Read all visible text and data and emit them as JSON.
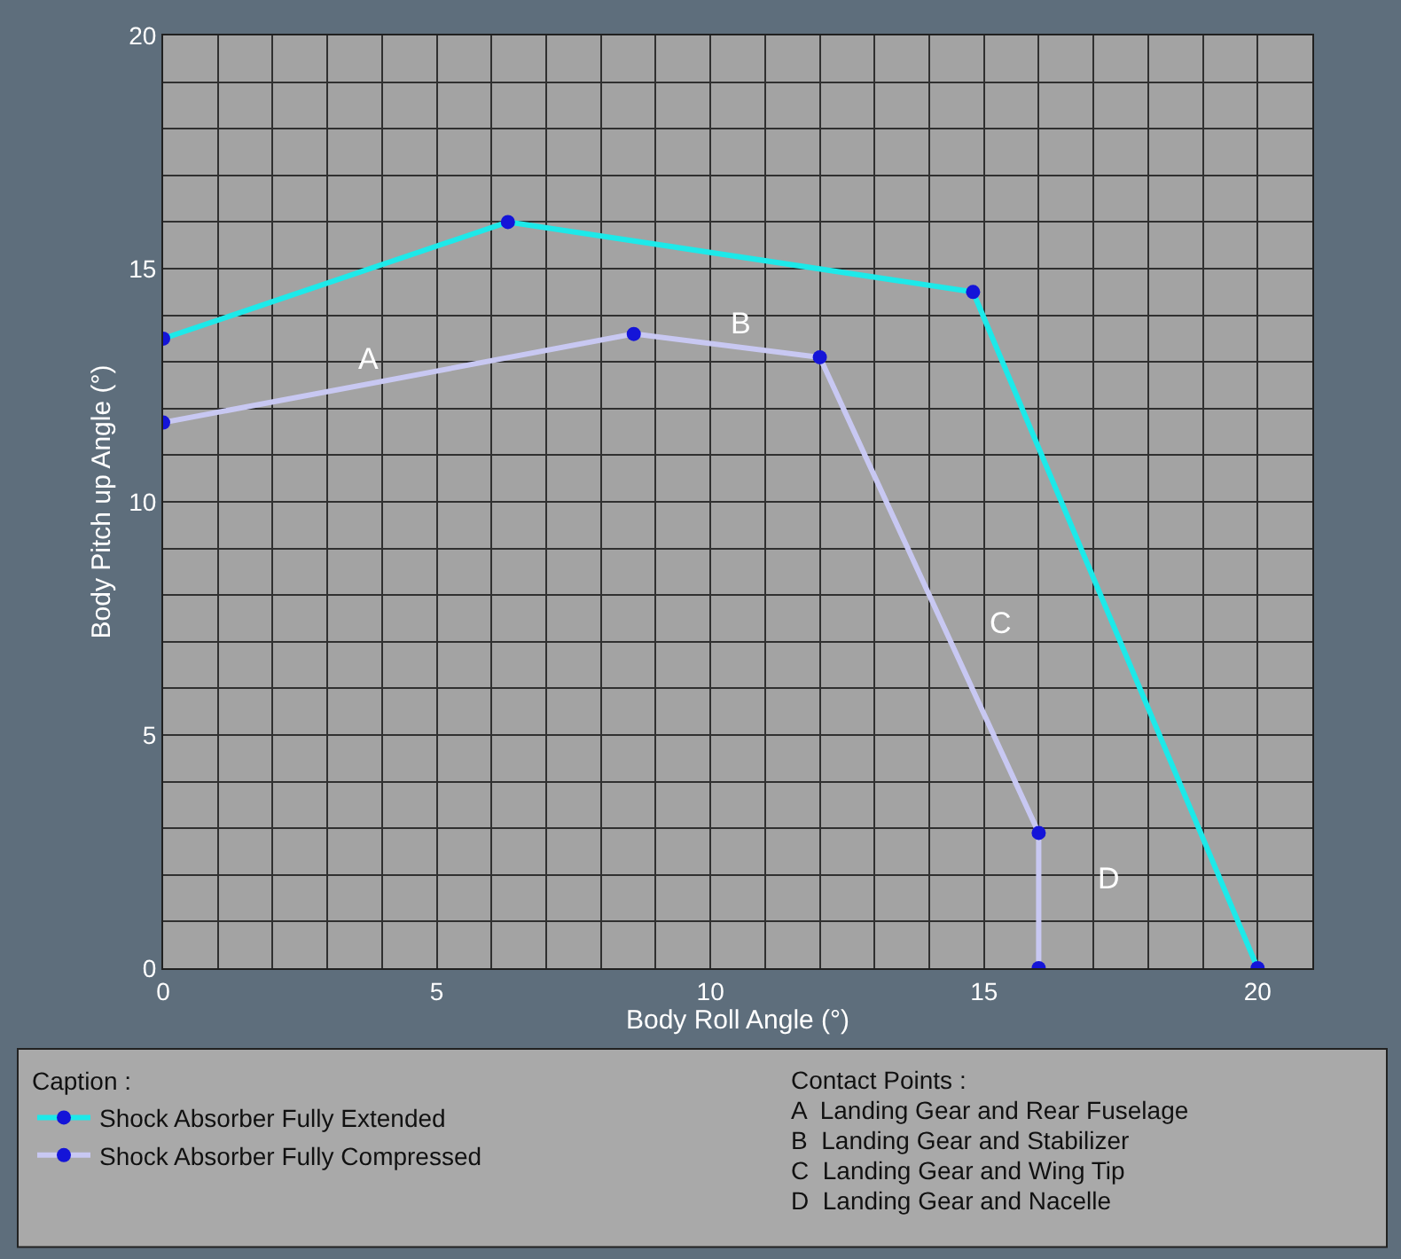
{
  "chart_data": {
    "type": "line",
    "xlabel": "Body Roll Angle (°)",
    "ylabel": "Body Pitch up Angle (°)",
    "legend_title": "Caption :",
    "legend": "bottom left",
    "series": [
      {
        "name": "Shock Absorber Fully Extended",
        "color": "#1de9e9",
        "x": [
          0,
          6.3,
          14.8,
          20
        ],
        "values": [
          13.5,
          16,
          14.5,
          0
        ]
      },
      {
        "name": "Shock Absorber Fully Compressed",
        "color": "#c8c8f2",
        "x": [
          0,
          8.6,
          12,
          16,
          16
        ],
        "values": [
          11.7,
          13.6,
          13.1,
          2.9,
          0
        ]
      }
    ],
    "marker": "circle",
    "xlim": [
      0,
      21
    ],
    "ylim": [
      0,
      20
    ],
    "xticks": [
      0,
      {
        "value": 1,
        "label": null
      },
      {
        "value": 2,
        "label": null
      },
      {
        "value": 3,
        "label": null
      },
      {
        "value": 4,
        "label": null
      },
      5,
      {
        "value": 6,
        "label": null
      },
      {
        "value": 7,
        "label": null
      },
      {
        "value": 8,
        "label": null
      },
      {
        "value": 9,
        "label": null
      },
      10,
      {
        "value": 11,
        "label": null
      },
      {
        "value": 12,
        "label": null
      },
      {
        "value": 13,
        "label": null
      },
      {
        "value": 14,
        "label": null
      },
      15,
      {
        "value": 16,
        "label": null
      },
      {
        "value": 17,
        "label": null
      },
      {
        "value": 18,
        "label": null
      },
      {
        "value": 19,
        "label": null
      },
      20,
      {
        "value": 21,
        "label": null
      }
    ],
    "yticks": [
      0,
      {
        "value": 1,
        "label": null
      },
      {
        "value": 2,
        "label": null
      },
      {
        "value": 3,
        "label": null
      },
      {
        "value": 4,
        "label": null
      },
      5,
      {
        "value": 6,
        "label": null
      },
      {
        "value": 7,
        "label": null
      },
      {
        "value": 8,
        "label": null
      },
      {
        "value": 9,
        "label": null
      },
      10,
      {
        "value": 11,
        "label": null
      },
      {
        "value": 12,
        "label": null
      },
      {
        "value": 13,
        "label": null
      },
      {
        "value": 14,
        "label": null
      },
      15,
      {
        "value": 16,
        "label": null
      },
      {
        "value": 17,
        "label": null
      },
      {
        "value": 18,
        "label": null
      },
      {
        "value": 19,
        "label": null
      },
      20
    ],
    "grid": true,
    "annotations": [
      "A",
      "B",
      "C",
      "D",
      "Contact Points :",
      "A  Landing Gear and Rear Fuselage",
      "B  Landing Gear and Stabilizer",
      "C  Landing Gear and Wing Tip",
      "D  Landing Gear and Nacelle"
    ]
  }
}
